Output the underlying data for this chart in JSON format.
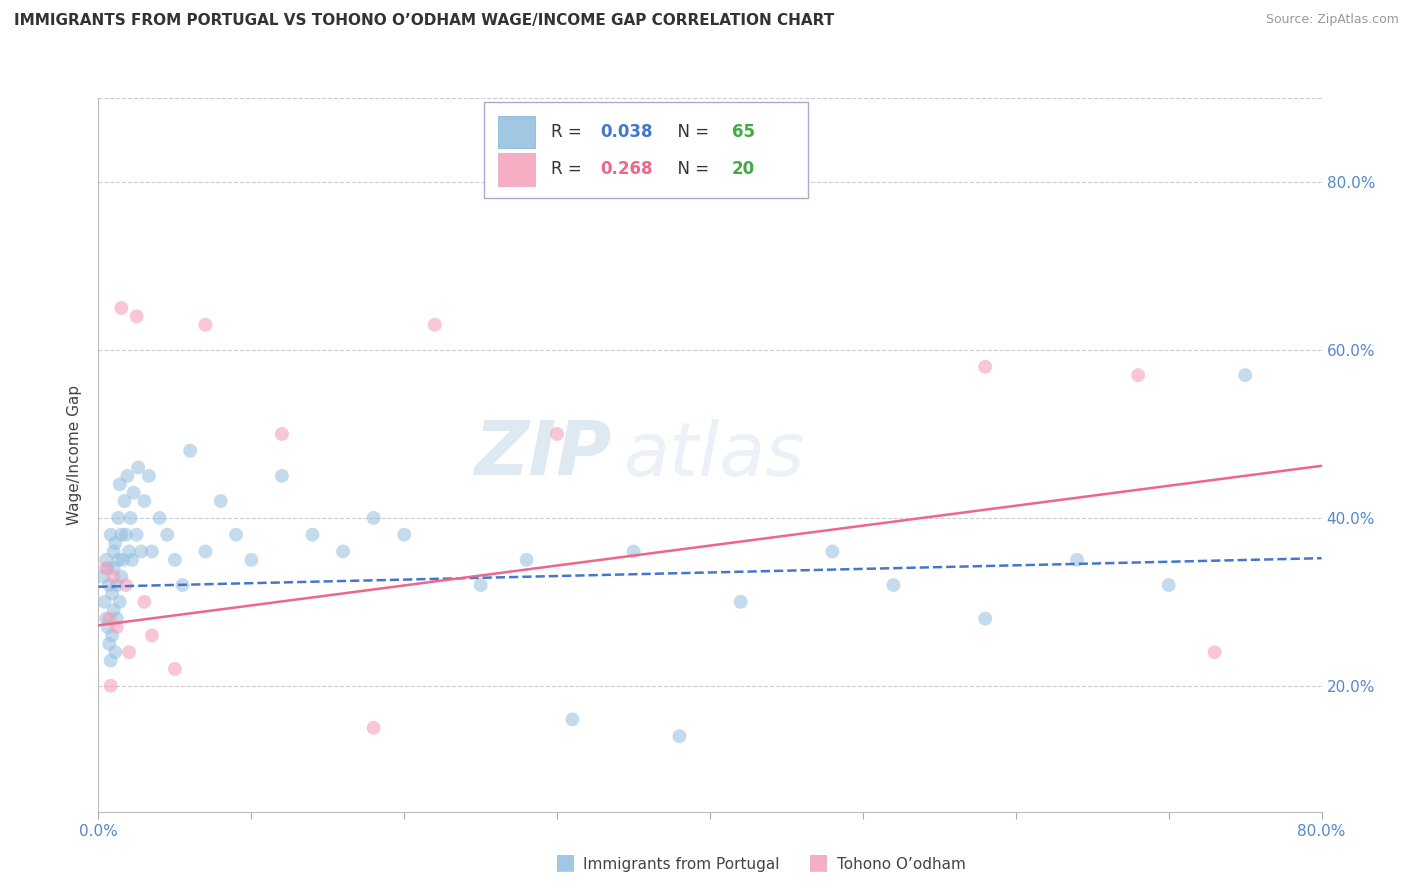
{
  "title": "IMMIGRANTS FROM PORTUGAL VS TOHONO O’ODHAM WAGE/INCOME GAP CORRELATION CHART",
  "source": "Source: ZipAtlas.com",
  "ylabel": "Wage/Income Gap",
  "xlim": [
    0.0,
    0.8
  ],
  "ylim": [
    0.05,
    0.9
  ],
  "xtick_positions": [
    0.0,
    0.1,
    0.2,
    0.3,
    0.4,
    0.5,
    0.6,
    0.7,
    0.8
  ],
  "xtick_labels": [
    "0.0%",
    "",
    "",
    "",
    "",
    "",
    "",
    "",
    "80.0%"
  ],
  "ytick_positions": [
    0.2,
    0.4,
    0.6,
    0.8
  ],
  "ytick_labels": [
    "20.0%",
    "40.0%",
    "60.0%",
    "80.0%"
  ],
  "blue_scatter_x": [
    0.003,
    0.004,
    0.005,
    0.005,
    0.006,
    0.006,
    0.007,
    0.007,
    0.008,
    0.008,
    0.009,
    0.009,
    0.01,
    0.01,
    0.01,
    0.011,
    0.011,
    0.012,
    0.012,
    0.013,
    0.013,
    0.014,
    0.014,
    0.015,
    0.015,
    0.016,
    0.017,
    0.018,
    0.019,
    0.02,
    0.021,
    0.022,
    0.023,
    0.025,
    0.026,
    0.028,
    0.03,
    0.033,
    0.035,
    0.04,
    0.045,
    0.05,
    0.055,
    0.06,
    0.07,
    0.08,
    0.09,
    0.1,
    0.12,
    0.14,
    0.16,
    0.18,
    0.2,
    0.25,
    0.28,
    0.31,
    0.35,
    0.38,
    0.42,
    0.48,
    0.52,
    0.58,
    0.64,
    0.7,
    0.75
  ],
  "blue_scatter_y": [
    0.33,
    0.3,
    0.28,
    0.35,
    0.27,
    0.34,
    0.25,
    0.32,
    0.23,
    0.38,
    0.31,
    0.26,
    0.36,
    0.29,
    0.34,
    0.24,
    0.37,
    0.32,
    0.28,
    0.35,
    0.4,
    0.3,
    0.44,
    0.33,
    0.38,
    0.35,
    0.42,
    0.38,
    0.45,
    0.36,
    0.4,
    0.35,
    0.43,
    0.38,
    0.46,
    0.36,
    0.42,
    0.45,
    0.36,
    0.4,
    0.38,
    0.35,
    0.32,
    0.48,
    0.36,
    0.42,
    0.38,
    0.35,
    0.45,
    0.38,
    0.36,
    0.4,
    0.38,
    0.32,
    0.35,
    0.16,
    0.36,
    0.14,
    0.3,
    0.36,
    0.32,
    0.28,
    0.35,
    0.32,
    0.57
  ],
  "pink_scatter_x": [
    0.005,
    0.007,
    0.008,
    0.01,
    0.012,
    0.015,
    0.018,
    0.02,
    0.025,
    0.03,
    0.035,
    0.05,
    0.07,
    0.12,
    0.18,
    0.22,
    0.3,
    0.58,
    0.68,
    0.73
  ],
  "pink_scatter_y": [
    0.34,
    0.28,
    0.2,
    0.33,
    0.27,
    0.65,
    0.32,
    0.24,
    0.64,
    0.3,
    0.26,
    0.22,
    0.63,
    0.5,
    0.15,
    0.63,
    0.5,
    0.58,
    0.57,
    0.24
  ],
  "blue_line_x": [
    0.0,
    0.8
  ],
  "blue_line_y": [
    0.318,
    0.352
  ],
  "pink_line_x": [
    0.0,
    0.8
  ],
  "pink_line_y": [
    0.272,
    0.462
  ],
  "watermark_zip": "ZIP",
  "watermark_atlas": "atlas",
  "blue_color": "#92bede",
  "pink_color": "#f4a0b8",
  "blue_line_color": "#4477cc",
  "pink_line_color": "#ee6688",
  "R_blue": 0.038,
  "N_blue": 65,
  "R_pink": 0.268,
  "N_pink": 20,
  "label_blue": "Immigrants from Portugal",
  "label_pink": "Tohono O’odham",
  "background_color": "#ffffff",
  "grid_color": "#cccccc",
  "dot_size": 100,
  "legend_R_blue": "#4477cc",
  "legend_N_blue": "#44aa44",
  "legend_R_pink": "#ee6688",
  "legend_N_pink": "#44aa44"
}
